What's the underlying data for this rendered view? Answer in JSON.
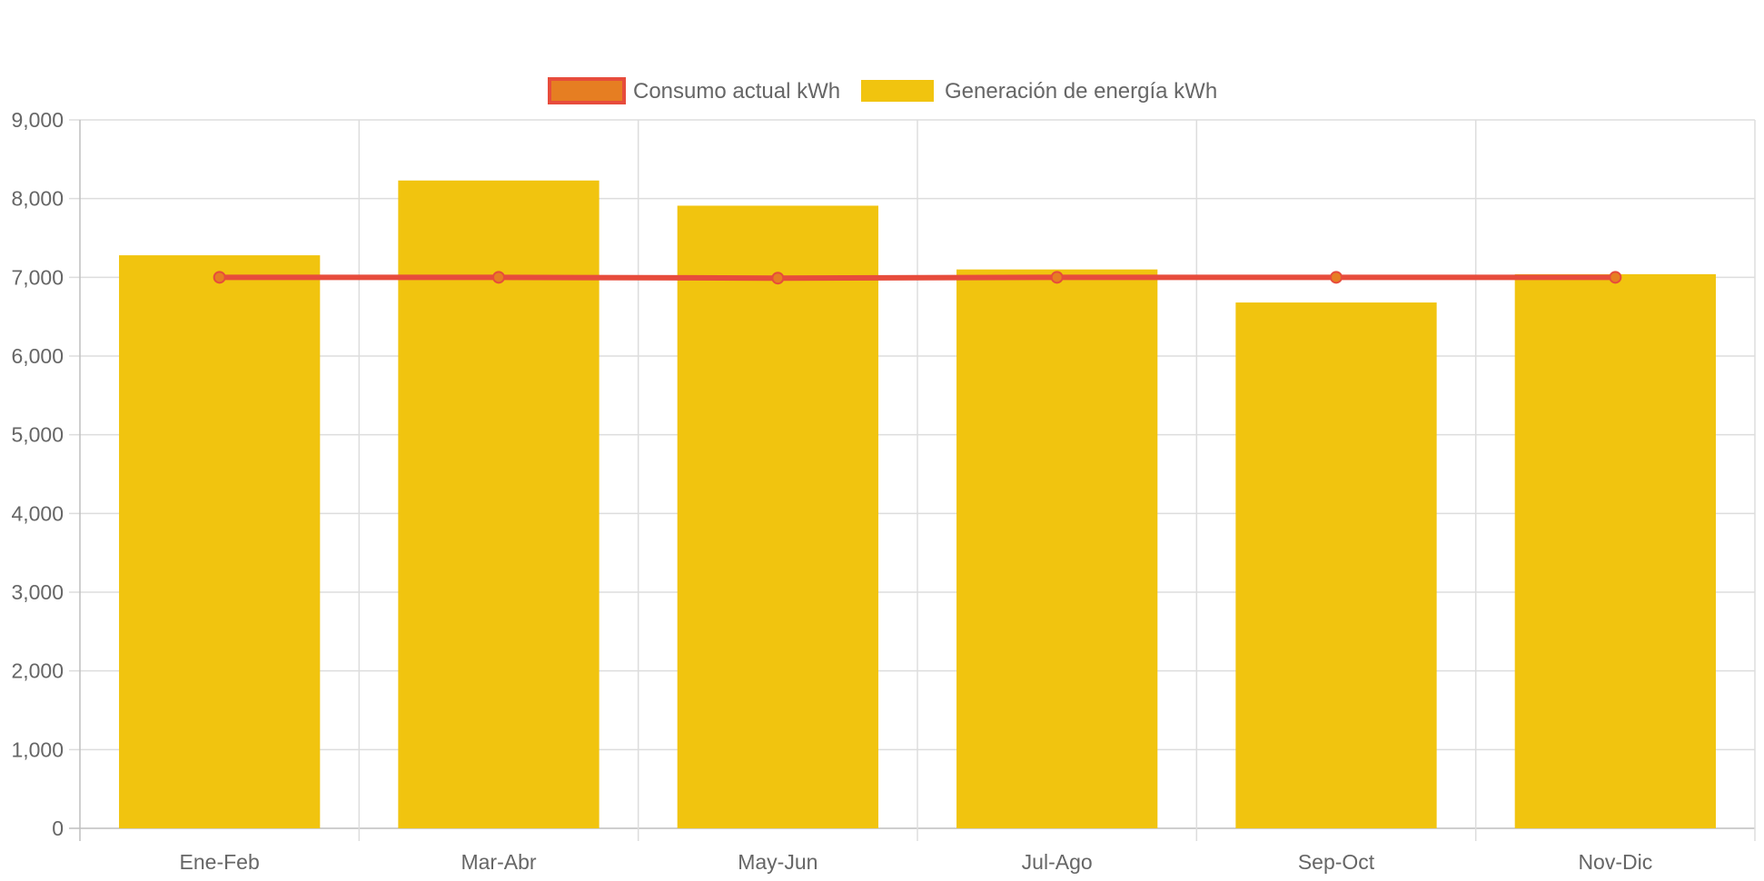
{
  "chart_data": {
    "type": "bar",
    "categories": [
      "Ene-Feb",
      "Mar-Abr",
      "May-Jun",
      "Jul-Ago",
      "Sep-Oct",
      "Nov-Dic"
    ],
    "series": [
      {
        "name": "Consumo actual kWh",
        "type": "line",
        "values": [
          7000,
          7000,
          6990,
          7000,
          7000,
          7000
        ],
        "color": "#e74c3c",
        "point_color": "#e67e22"
      },
      {
        "name": "Generación de energía kWh",
        "type": "bar",
        "values": [
          7280,
          8230,
          7910,
          7100,
          6680,
          7040
        ],
        "color": "#f1c40f"
      }
    ],
    "ylim": [
      0,
      9000
    ],
    "yticks": [
      0,
      1000,
      2000,
      3000,
      4000,
      5000,
      6000,
      7000,
      8000,
      9000
    ],
    "ytick_labels": [
      "0",
      "1,000",
      "2,000",
      "3,000",
      "4,000",
      "5,000",
      "6,000",
      "7,000",
      "8,000",
      "9,000"
    ],
    "grid": true,
    "legend_position": "top-center",
    "title": "",
    "xlabel": "",
    "ylabel": ""
  }
}
